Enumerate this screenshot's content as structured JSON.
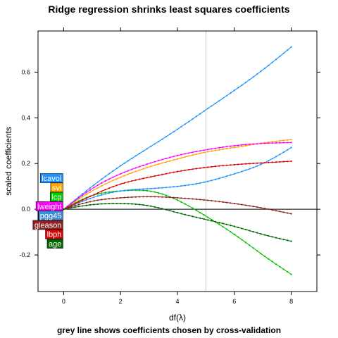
{
  "chart_data": {
    "type": "line",
    "title": "Ridge regression shrinks least squares coefficients",
    "subtitle": "grey line shows coefficients chosen by cross-validation",
    "xlabel": "df(λ)",
    "ylabel": "scaled coefficients",
    "xlim": [
      -0.9,
      8.9
    ],
    "ylim": [
      -0.36,
      0.78
    ],
    "x_ticks": [
      0,
      2,
      4,
      6,
      8
    ],
    "y_ticks": [
      -0.2,
      0.0,
      0.2,
      0.4,
      0.6
    ],
    "y_tick_labels": [
      "-0.2",
      "0.0",
      "0.2",
      "0.4",
      "0.6"
    ],
    "cv_df": 5,
    "cv_line_color": "#c8c8c8",
    "zero_line": true,
    "series": [
      {
        "name": "lcavol",
        "color": "#1e90ff",
        "label_bg": "#1e90ff",
        "x": [
          0,
          1,
          2,
          3,
          4,
          5,
          6,
          7,
          8
        ],
        "y": [
          0.0,
          0.1,
          0.19,
          0.27,
          0.35,
          0.435,
          0.52,
          0.61,
          0.71
        ]
      },
      {
        "name": "svi",
        "color": "#ffa500",
        "label_bg": "#ffa500",
        "x": [
          0,
          1,
          2,
          3,
          4,
          5,
          6,
          7,
          8
        ],
        "y": [
          0.0,
          0.08,
          0.14,
          0.185,
          0.22,
          0.25,
          0.27,
          0.29,
          0.305
        ]
      },
      {
        "name": "lcp",
        "color": "#00c000",
        "label_bg": "#00d000",
        "x": [
          0,
          1,
          2,
          3,
          4,
          5,
          6,
          7,
          8
        ],
        "y": [
          0.0,
          0.06,
          0.08,
          0.08,
          0.04,
          -0.03,
          -0.11,
          -0.2,
          -0.285
        ]
      },
      {
        "name": "lweight",
        "color": "#ff00ff",
        "label_bg": "#ff00ff",
        "x": [
          0,
          1,
          2,
          3,
          4,
          5,
          6,
          7,
          8
        ],
        "y": [
          0.0,
          0.09,
          0.155,
          0.2,
          0.235,
          0.26,
          0.278,
          0.288,
          0.292
        ]
      },
      {
        "name": "pgg45",
        "color": "#1e90ff",
        "label_bg": "#3c8cdc",
        "x": [
          0,
          1,
          2,
          3,
          4,
          5,
          6,
          7,
          8
        ],
        "y": [
          0.0,
          0.05,
          0.08,
          0.09,
          0.1,
          0.12,
          0.155,
          0.2,
          0.27
        ]
      },
      {
        "name": "gleason",
        "color": "#8b2323",
        "label_bg": "#8b2323",
        "x": [
          0,
          1,
          2,
          3,
          4,
          5,
          6,
          7,
          8
        ],
        "y": [
          0.0,
          0.035,
          0.05,
          0.055,
          0.05,
          0.04,
          0.025,
          0.005,
          -0.02
        ]
      },
      {
        "name": "lbph",
        "color": "#e00000",
        "label_bg": "#e00000",
        "x": [
          0,
          1,
          2,
          3,
          4,
          5,
          6,
          7,
          8
        ],
        "y": [
          0.0,
          0.06,
          0.11,
          0.14,
          0.165,
          0.183,
          0.195,
          0.203,
          0.21
        ]
      },
      {
        "name": "age",
        "color": "#006400",
        "label_bg": "#006400",
        "x": [
          0,
          1,
          2,
          3,
          4,
          5,
          6,
          7,
          8
        ],
        "y": [
          0.0,
          0.02,
          0.025,
          0.015,
          -0.015,
          -0.045,
          -0.075,
          -0.11,
          -0.14
        ]
      }
    ]
  }
}
